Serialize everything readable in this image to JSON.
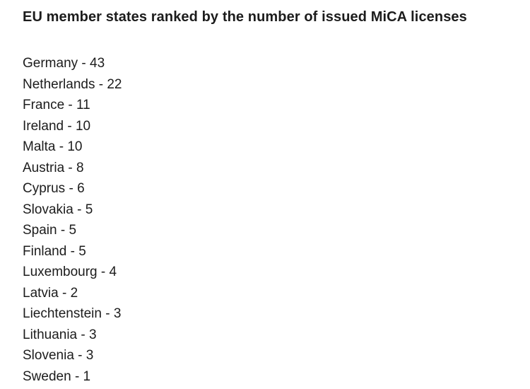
{
  "title": "EU member states ranked by the number of issued MiCA licenses",
  "list": {
    "separator": " - ",
    "items": [
      {
        "country": "Germany",
        "licenses": 43
      },
      {
        "country": "Netherlands",
        "licenses": 22
      },
      {
        "country": "France",
        "licenses": 11
      },
      {
        "country": "Ireland",
        "licenses": 10
      },
      {
        "country": "Malta",
        "licenses": 10
      },
      {
        "country": "Austria",
        "licenses": 8
      },
      {
        "country": "Cyprus",
        "licenses": 6
      },
      {
        "country": "Slovakia",
        "licenses": 5
      },
      {
        "country": "Spain",
        "licenses": 5
      },
      {
        "country": "Finland",
        "licenses": 5
      },
      {
        "country": "Luxembourg",
        "licenses": 4
      },
      {
        "country": "Latvia",
        "licenses": 2
      },
      {
        "country": "Liechtenstein",
        "licenses": 3
      },
      {
        "country": "Lithuania",
        "licenses": 3
      },
      {
        "country": "Slovenia",
        "licenses": 3
      },
      {
        "country": "Sweden",
        "licenses": 1
      }
    ]
  }
}
